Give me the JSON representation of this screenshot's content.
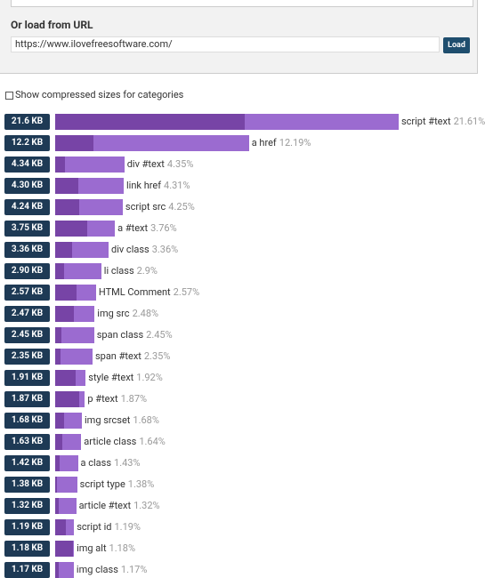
{
  "url_section": {
    "title": "Or load from URL",
    "url": "https://www.ilovefreesoftware.com/",
    "button": "Load"
  },
  "checkbox_label": "Show compressed sizes for categories",
  "rows": [
    {
      "size": "21.6 KB",
      "name": "script #text",
      "percent": 21.61,
      "percent_label": "21.61%",
      "compressed": 11.93
    },
    {
      "size": "12.2 KB",
      "name": "a href",
      "percent": 12.19,
      "percent_label": "12.19%",
      "compressed": 2.4
    },
    {
      "size": "4.34 KB",
      "name": "div #text",
      "percent": 4.35,
      "percent_label": "4.35%",
      "compressed": 0.6
    },
    {
      "size": "4.30 KB",
      "name": "link href",
      "percent": 4.31,
      "percent_label": "4.31%",
      "compressed": 1.46
    },
    {
      "size": "4.24 KB",
      "name": "script src",
      "percent": 4.25,
      "percent_label": "4.25%",
      "compressed": 1.5
    },
    {
      "size": "3.75 KB",
      "name": "a #text",
      "percent": 3.76,
      "percent_label": "3.76%",
      "compressed": 2.0
    },
    {
      "size": "3.36 KB",
      "name": "div class",
      "percent": 3.36,
      "percent_label": "3.36%",
      "compressed": 1.06
    },
    {
      "size": "2.90 KB",
      "name": "li class",
      "percent": 2.9,
      "percent_label": "2.9%",
      "compressed": 0.56
    },
    {
      "size": "2.57 KB",
      "name": "HTML Comment",
      "percent": 2.57,
      "percent_label": "2.57%",
      "compressed": 1.34
    },
    {
      "size": "2.47 KB",
      "name": "img src",
      "percent": 2.48,
      "percent_label": "2.48%",
      "compressed": 1.18
    },
    {
      "size": "2.45 KB",
      "name": "span class",
      "percent": 2.45,
      "percent_label": "2.45%",
      "compressed": 0.4
    },
    {
      "size": "2.35 KB",
      "name": "span #text",
      "percent": 2.35,
      "percent_label": "2.35%",
      "compressed": 0.34
    },
    {
      "size": "1.91 KB",
      "name": "style #text",
      "percent": 1.92,
      "percent_label": "1.92%",
      "compressed": 1.29
    },
    {
      "size": "1.87 KB",
      "name": "p #text",
      "percent": 1.87,
      "percent_label": "1.87%",
      "compressed": 1.5
    },
    {
      "size": "1.68 KB",
      "name": "img srcset",
      "percent": 1.68,
      "percent_label": "1.68%",
      "compressed": 0.56
    },
    {
      "size": "1.63 KB",
      "name": "article class",
      "percent": 1.64,
      "percent_label": "1.64%",
      "compressed": 0.45
    },
    {
      "size": "1.42 KB",
      "name": "a class",
      "percent": 1.43,
      "percent_label": "1.43%",
      "compressed": 0.28
    },
    {
      "size": "1.38 KB",
      "name": "script type",
      "percent": 1.38,
      "percent_label": "1.38%",
      "compressed": 0.11
    },
    {
      "size": "1.32 KB",
      "name": "article #text",
      "percent": 1.32,
      "percent_label": "1.32%",
      "compressed": 0.22
    },
    {
      "size": "1.19 KB",
      "name": "script id",
      "percent": 1.19,
      "percent_label": "1.19%",
      "compressed": 0.67
    },
    {
      "size": "1.18 KB",
      "name": "img alt",
      "percent": 1.18,
      "percent_label": "1.18%",
      "compressed": 1.12
    },
    {
      "size": "1.17 KB",
      "name": "img class",
      "percent": 1.17,
      "percent_label": "1.17%",
      "compressed": 0.22
    }
  ]
}
